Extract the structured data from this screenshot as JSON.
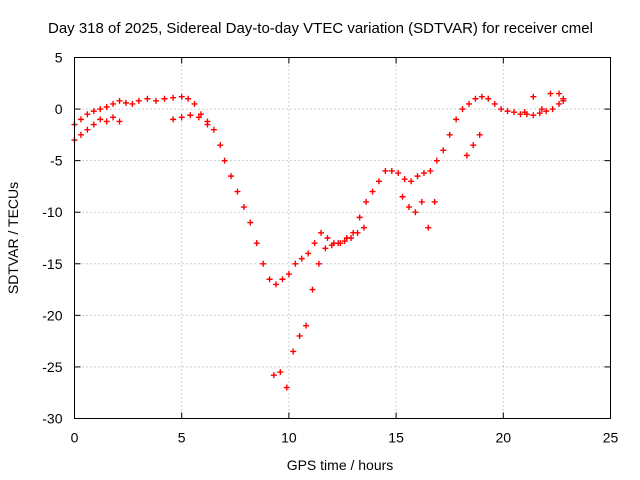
{
  "chart_data": {
    "type": "scatter",
    "title": "Day 318 of 2025, Sidereal Day-to-day VTEC variation (SDTVAR) for receiver cmel",
    "xlabel": "GPS time / hours",
    "ylabel": "SDTVAR / TECUs",
    "xlim": [
      0,
      25
    ],
    "ylim": [
      -30,
      5
    ],
    "xticks": [
      "0",
      "5",
      "10",
      "15",
      "20",
      "25"
    ],
    "yticks": [
      "5",
      "0",
      "-5",
      "-10",
      "-15",
      "-20",
      "-25",
      "-30"
    ],
    "grid": true,
    "marker": "plus",
    "series": [
      {
        "name": "SDTVAR",
        "color": "#ff0000",
        "x": [
          0.0,
          0.3,
          0.6,
          0.9,
          1.2,
          1.5,
          1.8,
          2.1,
          2.4,
          2.7,
          3.0,
          3.4,
          3.8,
          4.2,
          4.6,
          5.0,
          5.3,
          5.6,
          5.9,
          6.2,
          6.5,
          6.8,
          7.0,
          7.3,
          7.6,
          7.9,
          8.2,
          8.5,
          8.8,
          9.1,
          9.4,
          9.7,
          10.0,
          10.3,
          10.6,
          10.9,
          11.2,
          11.5,
          11.8,
          12.1,
          12.4,
          12.7,
          13.0,
          13.3,
          13.6,
          13.9,
          14.2,
          14.5,
          14.8,
          15.1,
          15.4,
          15.7,
          16.0,
          16.3,
          16.6,
          16.9,
          17.2,
          17.5,
          17.8,
          18.1,
          18.4,
          18.7,
          19.0,
          19.3,
          19.6,
          19.9,
          20.2,
          20.5,
          20.8,
          21.1,
          21.4,
          21.7,
          22.0,
          22.3,
          22.6,
          22.8,
          0.0,
          0.3,
          0.6,
          0.9,
          1.2,
          1.5,
          1.8,
          2.1,
          4.6,
          5.0,
          5.4,
          5.8,
          6.2,
          9.3,
          9.6,
          9.9,
          10.2,
          10.5,
          10.8,
          11.1,
          11.4,
          11.7,
          12.0,
          12.3,
          12.6,
          12.9,
          13.2,
          13.5,
          15.3,
          15.6,
          15.9,
          16.2,
          16.5,
          16.8,
          18.3,
          18.6,
          18.9,
          21.0,
          21.4,
          21.8,
          22.2,
          22.6,
          22.8
        ],
        "y": [
          -1.5,
          -1.0,
          -0.5,
          -0.2,
          0.0,
          0.2,
          0.5,
          0.8,
          0.6,
          0.5,
          0.8,
          1.0,
          0.8,
          1.0,
          1.1,
          1.2,
          1.0,
          0.5,
          -0.5,
          -1.2,
          -2.0,
          -3.5,
          -5.0,
          -6.5,
          -8.0,
          -9.5,
          -11.0,
          -13.0,
          -15.0,
          -16.5,
          -17.0,
          -16.5,
          -16.0,
          -15.0,
          -14.5,
          -14.0,
          -13.0,
          -12.0,
          -12.5,
          -13.0,
          -13.0,
          -12.5,
          -12.0,
          -10.5,
          -9.0,
          -8.0,
          -7.0,
          -6.0,
          -6.0,
          -6.2,
          -6.8,
          -7.0,
          -6.5,
          -6.2,
          -6.0,
          -5.0,
          -4.0,
          -2.5,
          -1.0,
          0.0,
          0.5,
          1.0,
          1.2,
          1.0,
          0.5,
          0.0,
          -0.2,
          -0.3,
          -0.5,
          -0.5,
          -0.6,
          -0.4,
          -0.2,
          0.0,
          0.5,
          0.8,
          -3.0,
          -2.5,
          -2.0,
          -1.5,
          -1.0,
          -1.2,
          -0.8,
          -1.2,
          -1.0,
          -0.8,
          -0.6,
          -0.8,
          -1.5,
          -25.8,
          -25.5,
          -27.0,
          -23.5,
          -22.0,
          -21.0,
          -17.5,
          -15.0,
          -13.5,
          -13.2,
          -13.0,
          -12.8,
          -12.5,
          -12.0,
          -11.5,
          -8.5,
          -9.5,
          -10.0,
          -9.0,
          -11.5,
          -9.0,
          -4.5,
          -3.5,
          -2.5,
          -0.3,
          1.2,
          0.0,
          1.5,
          1.5,
          1.0
        ]
      }
    ]
  }
}
